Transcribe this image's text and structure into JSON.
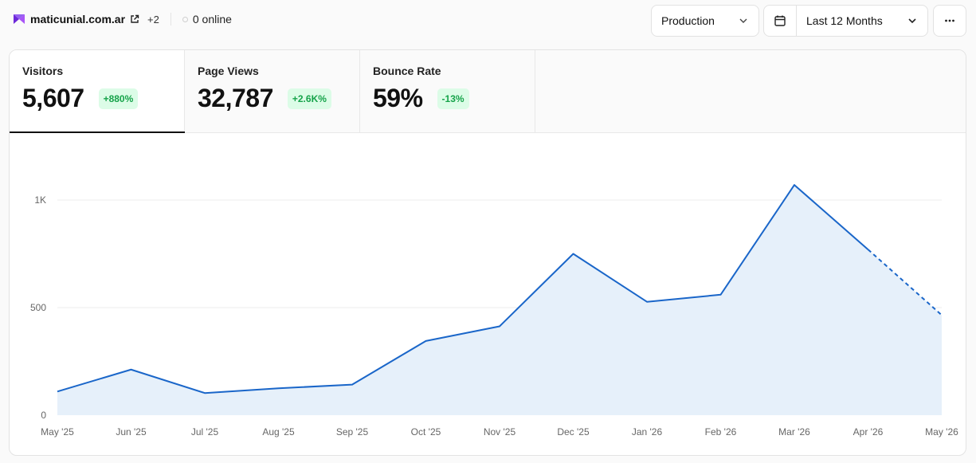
{
  "header": {
    "site_name": "maticunial.com.ar",
    "more_sites": "+2",
    "online_text": "0 online"
  },
  "toolbar": {
    "environment": "Production",
    "date_range": "Last 12 Months"
  },
  "tabs": [
    {
      "label": "Visitors",
      "value": "5,607",
      "change": "+880%"
    },
    {
      "label": "Page Views",
      "value": "32,787",
      "change": "+2.6K%"
    },
    {
      "label": "Bounce Rate",
      "value": "59%",
      "change": "-13%"
    }
  ],
  "colors": {
    "line": "#1a66c9",
    "area": "#e6f0fa",
    "badge_text": "#16a34a",
    "badge_bg": "#dcfce7"
  },
  "chart_data": {
    "type": "area",
    "categories": [
      "May '25",
      "Jun '25",
      "Jul '25",
      "Aug '25",
      "Sep '25",
      "Oct '25",
      "Nov '25",
      "Dec '25",
      "Jan '26",
      "Feb '26",
      "Mar '26",
      "Apr '26",
      "May '26"
    ],
    "values": [
      110,
      212,
      103,
      125,
      142,
      345,
      413,
      750,
      527,
      560,
      1070,
      770,
      465
    ],
    "yticks": [
      0,
      500,
      1000
    ],
    "ytick_labels": [
      "0",
      "500",
      "1K"
    ],
    "ylim": [
      0,
      1000
    ],
    "dashed_last_segment": true,
    "grid": "horizontal"
  }
}
